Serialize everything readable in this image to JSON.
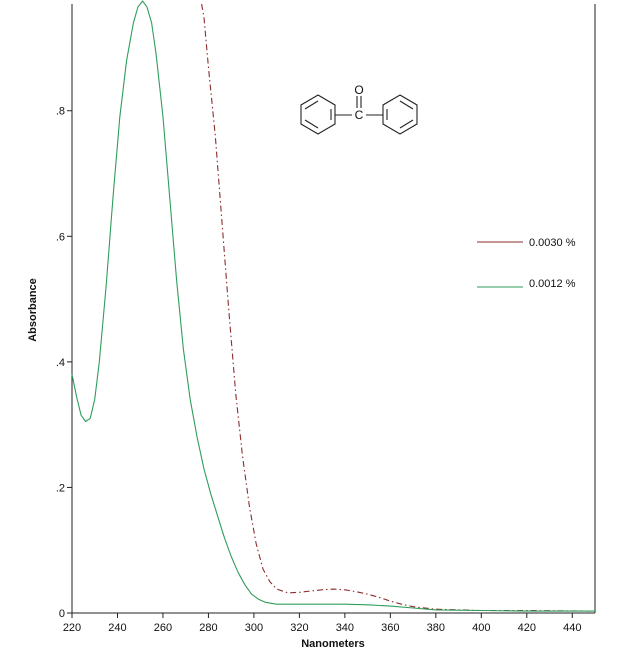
{
  "chart_data": {
    "type": "line",
    "title": "",
    "xlabel": "Nanometers",
    "ylabel": "Absorbance",
    "xlim": [
      220,
      450
    ],
    "ylim": [
      0,
      0.97
    ],
    "x_ticks": [
      220,
      240,
      260,
      280,
      300,
      320,
      340,
      360,
      380,
      400,
      420,
      440
    ],
    "x_tick_labels": [
      "220",
      "240",
      "260",
      "280",
      "300",
      "320",
      "340",
      "360",
      "380",
      "400",
      "420",
      "440"
    ],
    "y_ticks": [
      0,
      0.2,
      0.4,
      0.6,
      0.8
    ],
    "y_tick_labels": [
      "0",
      ".2",
      ".4",
      ".6",
      ".8"
    ],
    "grid": false,
    "legend_position": "right",
    "molecule_label": "O",
    "series": [
      {
        "name": "0.0030 %",
        "color": "#8b2d2d",
        "dash": "dash-dot",
        "points": [
          [
            277,
            0.97
          ],
          [
            278,
            0.95
          ],
          [
            280,
            0.87
          ],
          [
            283,
            0.76
          ],
          [
            286,
            0.62
          ],
          [
            289,
            0.48
          ],
          [
            292,
            0.35
          ],
          [
            295,
            0.25
          ],
          [
            298,
            0.17
          ],
          [
            301,
            0.11
          ],
          [
            304,
            0.07
          ],
          [
            307,
            0.05
          ],
          [
            310,
            0.038
          ],
          [
            315,
            0.032
          ],
          [
            320,
            0.033
          ],
          [
            325,
            0.035
          ],
          [
            330,
            0.037
          ],
          [
            335,
            0.038
          ],
          [
            340,
            0.037
          ],
          [
            345,
            0.034
          ],
          [
            350,
            0.03
          ],
          [
            355,
            0.025
          ],
          [
            360,
            0.019
          ],
          [
            365,
            0.014
          ],
          [
            370,
            0.01
          ],
          [
            380,
            0.006
          ],
          [
            400,
            0.004
          ],
          [
            420,
            0.004
          ],
          [
            450,
            0.003
          ]
        ]
      },
      {
        "name": "0.0012 %",
        "color": "#2e9e5b",
        "dash": "solid",
        "points": [
          [
            220,
            0.38
          ],
          [
            222,
            0.345
          ],
          [
            224,
            0.315
          ],
          [
            226,
            0.305
          ],
          [
            228,
            0.31
          ],
          [
            230,
            0.34
          ],
          [
            232,
            0.4
          ],
          [
            235,
            0.52
          ],
          [
            238,
            0.66
          ],
          [
            241,
            0.79
          ],
          [
            244,
            0.88
          ],
          [
            247,
            0.94
          ],
          [
            249,
            0.965
          ],
          [
            251,
            0.975
          ],
          [
            253,
            0.965
          ],
          [
            255,
            0.94
          ],
          [
            257,
            0.89
          ],
          [
            260,
            0.79
          ],
          [
            263,
            0.66
          ],
          [
            266,
            0.53
          ],
          [
            269,
            0.42
          ],
          [
            272,
            0.34
          ],
          [
            275,
            0.28
          ],
          [
            278,
            0.23
          ],
          [
            281,
            0.19
          ],
          [
            284,
            0.155
          ],
          [
            287,
            0.12
          ],
          [
            290,
            0.09
          ],
          [
            293,
            0.065
          ],
          [
            296,
            0.045
          ],
          [
            299,
            0.03
          ],
          [
            302,
            0.022
          ],
          [
            305,
            0.017
          ],
          [
            310,
            0.014
          ],
          [
            320,
            0.014
          ],
          [
            330,
            0.014
          ],
          [
            340,
            0.014
          ],
          [
            350,
            0.013
          ],
          [
            360,
            0.011
          ],
          [
            370,
            0.008
          ],
          [
            380,
            0.005
          ],
          [
            400,
            0.004
          ],
          [
            420,
            0.003
          ],
          [
            450,
            0.003
          ]
        ]
      }
    ]
  }
}
